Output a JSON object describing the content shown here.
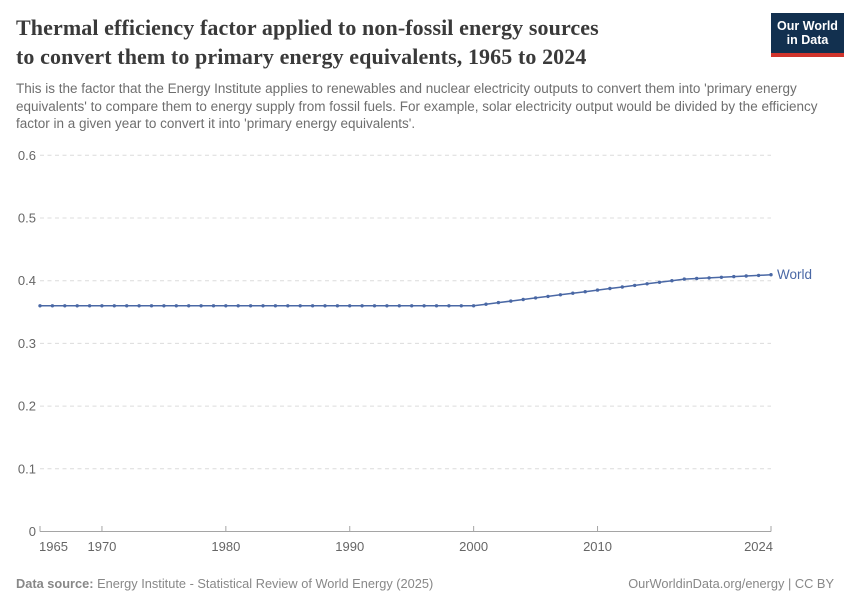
{
  "header": {
    "title": "Thermal efficiency factor applied to non-fossil energy sources to convert them to primary energy equivalents, 1965 to 2024",
    "title_lines": {
      "0": "Thermal efficiency factor applied to non-fossil energy sources",
      "1": "to convert them to primary energy equivalents, 1965 to 2024"
    },
    "subtitle": "This is the factor that the Energy Institute applies to renewables and nuclear electricity outputs to convert them into 'primary energy equivalents' to compare them to energy supply from fossil fuels. For example, solar electricity output would be divided by the efficiency factor in a given year to convert it into 'primary energy equivalents'.",
    "logo": {
      "line1": "Our World",
      "line2": "in Data",
      "bg_color": "#12304f",
      "accent_color": "#d0342c"
    }
  },
  "chart_data": {
    "type": "line",
    "title": "Thermal efficiency factor applied to non-fossil energy sources to convert them to primary energy equivalents, 1965 to 2024",
    "xlabel": "",
    "ylabel": "",
    "xlim": [
      1965,
      2024
    ],
    "ylim": [
      0,
      0.6
    ],
    "grid": "horizontal-dashed",
    "legend_position": "end-of-line-label",
    "x_ticks": [
      1965,
      1970,
      1980,
      1990,
      2000,
      2010,
      2024
    ],
    "x_tick_labels": [
      "1965",
      "1970",
      "1980",
      "1990",
      "2000",
      "2010",
      "2024"
    ],
    "y_ticks": [
      0,
      0.1,
      0.2,
      0.3,
      0.4,
      0.5,
      0.6
    ],
    "y_tick_labels": [
      "0",
      "0.1",
      "0.2",
      "0.3",
      "0.4",
      "0.5",
      "0.6"
    ],
    "series": [
      {
        "name": "World",
        "color": "#4a68a5",
        "x": [
          1965,
          1966,
          1967,
          1968,
          1969,
          1970,
          1971,
          1972,
          1973,
          1974,
          1975,
          1976,
          1977,
          1978,
          1979,
          1980,
          1981,
          1982,
          1983,
          1984,
          1985,
          1986,
          1987,
          1988,
          1989,
          1990,
          1991,
          1992,
          1993,
          1994,
          1995,
          1996,
          1997,
          1998,
          1999,
          2000,
          2001,
          2002,
          2003,
          2004,
          2005,
          2006,
          2007,
          2008,
          2009,
          2010,
          2011,
          2012,
          2013,
          2014,
          2015,
          2016,
          2017,
          2018,
          2019,
          2020,
          2021,
          2022,
          2023,
          2024
        ],
        "values": [
          0.36,
          0.36,
          0.36,
          0.36,
          0.36,
          0.36,
          0.36,
          0.36,
          0.36,
          0.36,
          0.36,
          0.36,
          0.36,
          0.36,
          0.36,
          0.36,
          0.36,
          0.36,
          0.36,
          0.36,
          0.36,
          0.36,
          0.36,
          0.36,
          0.36,
          0.36,
          0.36,
          0.36,
          0.36,
          0.36,
          0.36,
          0.36,
          0.36,
          0.36,
          0.36,
          0.36,
          0.3625,
          0.365,
          0.3675,
          0.37,
          0.3725,
          0.375,
          0.3775,
          0.38,
          0.3825,
          0.385,
          0.3875,
          0.39,
          0.3925,
          0.395,
          0.3975,
          0.4,
          0.4025,
          0.4035,
          0.4045,
          0.4055,
          0.4065,
          0.4075,
          0.4085,
          0.4095
        ]
      }
    ],
    "colors": {
      "gridline": "#dcdcdc",
      "axis": "#a5a5a5",
      "tick_label": "#666666"
    }
  },
  "footer": {
    "datasource_label": "Data source:",
    "datasource": "Energy Institute - Statistical Review of World Energy (2025)",
    "link": "OurWorldinData.org/energy | CC BY"
  }
}
